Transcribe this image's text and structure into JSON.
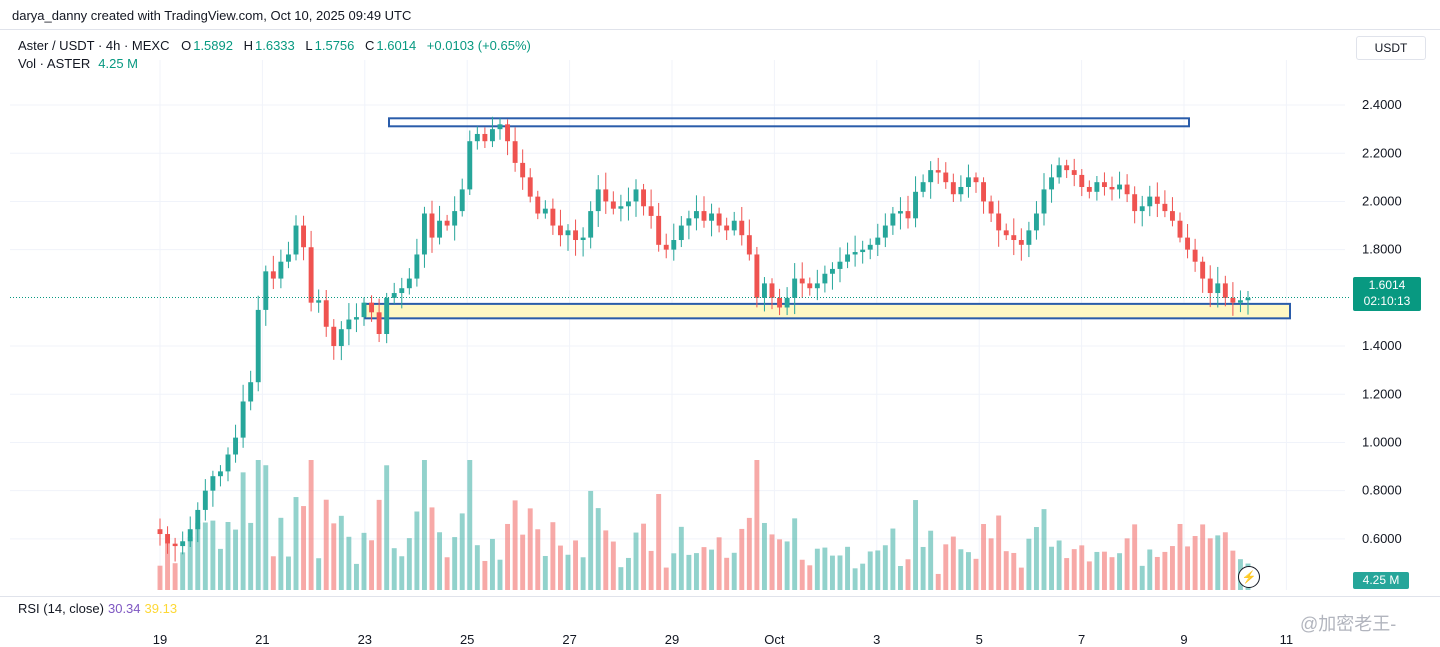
{
  "header": {
    "created_text": "darya_danny created with TradingView.com, Oct 10, 2025 09:49 UTC"
  },
  "legend": {
    "symbol": "Aster / USDT · 4h · MEXC",
    "o_label": "O",
    "o_value": "1.5892",
    "h_label": "H",
    "h_value": "1.6333",
    "l_label": "L",
    "l_value": "1.5756",
    "c_label": "C",
    "c_value": "1.6014",
    "change": "+0.0103 (+0.65%)",
    "vol_label": "Vol · ASTER",
    "vol_value": "4.25 M"
  },
  "price_axis": {
    "currency": "USDT",
    "ticks": [
      "2.4000",
      "2.2000",
      "2.0000",
      "1.8000",
      "1.4000",
      "1.2000",
      "1.0000",
      "0.8000",
      "0.6000"
    ],
    "last_price": "1.6014",
    "countdown": "02:10:13",
    "volume_tag": "4.25 M"
  },
  "rsi": {
    "label": "RSI (14, close)",
    "value1": "30.34",
    "value2": "39.13"
  },
  "time_axis": {
    "labels": [
      "19",
      "21",
      "23",
      "25",
      "27",
      "29",
      "Oct",
      "3",
      "5",
      "7",
      "9",
      "11"
    ]
  },
  "watermark": {
    "text": "@加密老王-"
  },
  "colors": {
    "up": "#26a69a",
    "down": "#ef5350",
    "zone_border": "#2a5caa",
    "zone_fill": "#fff8c4"
  },
  "chart_data": {
    "type": "candlestick",
    "title": "Aster / USDT · 4h · MEXC",
    "ylim": [
      0.45,
      2.45
    ],
    "current_price": 1.6014,
    "resistance_zone": [
      2.325,
      2.345
    ],
    "support_zone": [
      1.515,
      1.575
    ],
    "x_range": [
      "Sep 18",
      "Oct 11"
    ],
    "close_series": [
      0.62,
      0.58,
      0.57,
      0.59,
      0.64,
      0.72,
      0.8,
      0.86,
      0.88,
      0.95,
      1.02,
      1.17,
      1.25,
      1.55,
      1.71,
      1.68,
      1.75,
      1.78,
      1.9,
      1.81,
      1.58,
      1.59,
      1.48,
      1.4,
      1.47,
      1.51,
      1.52,
      1.58,
      1.54,
      1.45,
      1.6,
      1.62,
      1.64,
      1.68,
      1.78,
      1.95,
      1.85,
      1.92,
      1.9,
      1.96,
      2.05,
      2.25,
      2.28,
      2.25,
      2.3,
      2.32,
      2.25,
      2.16,
      2.1,
      2.02,
      1.95,
      1.97,
      1.9,
      1.86,
      1.88,
      1.84,
      1.85,
      1.96,
      2.05,
      2.0,
      1.97,
      1.98,
      2.0,
      2.05,
      1.98,
      1.94,
      1.82,
      1.8,
      1.84,
      1.9,
      1.93,
      1.96,
      1.92,
      1.95,
      1.9,
      1.88,
      1.92,
      1.86,
      1.78,
      1.6,
      1.66,
      1.6,
      1.56,
      1.6,
      1.68,
      1.66,
      1.64,
      1.66,
      1.7,
      1.72,
      1.75,
      1.78,
      1.79,
      1.8,
      1.82,
      1.85,
      1.9,
      1.95,
      1.96,
      1.93,
      2.04,
      2.08,
      2.13,
      2.12,
      2.08,
      2.03,
      2.06,
      2.1,
      2.08,
      2.0,
      1.95,
      1.88,
      1.86,
      1.84,
      1.82,
      1.88,
      1.95,
      2.05,
      2.1,
      2.15,
      2.13,
      2.11,
      2.06,
      2.04,
      2.08,
      2.06,
      2.05,
      2.07,
      2.03,
      1.96,
      1.98,
      2.02,
      1.99,
      1.96,
      1.92,
      1.85,
      1.8,
      1.75,
      1.68,
      1.62,
      1.66,
      1.6,
      1.58,
      1.59,
      1.6
    ]
  }
}
